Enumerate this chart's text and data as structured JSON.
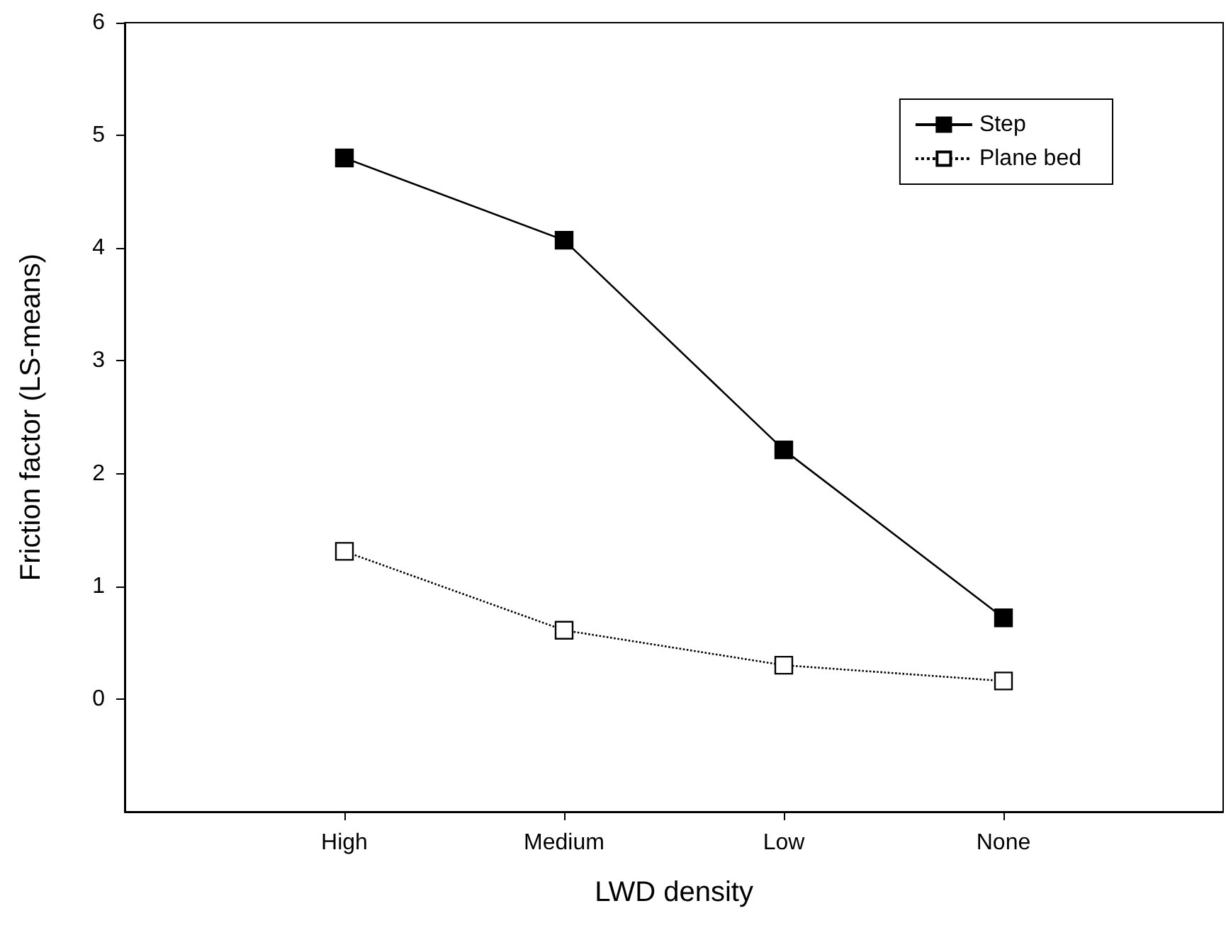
{
  "chart_data": {
    "type": "line",
    "xlabel": "LWD density",
    "ylabel": "Friction factor (LS-means)",
    "categories": [
      "High",
      "Medium",
      "Low",
      "None"
    ],
    "series": [
      {
        "name": "Step",
        "color": "#000000",
        "line_style": "solid",
        "values": [
          4.8,
          4.07,
          2.21,
          0.72
        ]
      },
      {
        "name": "Plane bed",
        "color": "#000000",
        "line_style": "dotted",
        "values": [
          1.31,
          0.61,
          0.3,
          0.16
        ]
      }
    ],
    "marker": "square",
    "ylim": [
      -1,
      6
    ],
    "yticks": [
      0,
      1,
      2,
      3,
      4,
      5,
      6
    ],
    "grid": false,
    "legend": "top right"
  }
}
